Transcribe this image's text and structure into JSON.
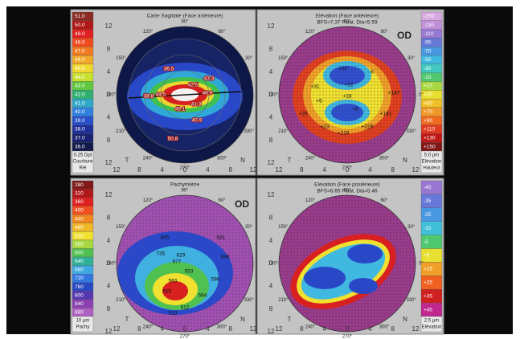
{
  "panels": [
    {
      "title": "Carte Sagittale (Face antérieure)",
      "scale": {
        "labels": [
          "51.0",
          "50.0",
          "49.0",
          "48.0",
          "47.0",
          "46.0",
          "45.0",
          "44.0",
          "43.0",
          "42.0",
          "41.0",
          "40.0",
          "39.0",
          "38.0",
          "37.0",
          "36.0"
        ],
        "colors": [
          "#8a2a20",
          "#b01818",
          "#e02020",
          "#f04a20",
          "#f07a20",
          "#f0a828",
          "#f0d830",
          "#c8e030",
          "#60c840",
          "#30b070",
          "#30a8c8",
          "#3080e0",
          "#2850c8",
          "#20309a",
          "#182270",
          "#101a48"
        ],
        "footer": [
          "0.25 Dpt",
          "Courbure",
          "Rel"
        ]
      },
      "yticks": [
        "12",
        "8",
        "4",
        "0",
        "4",
        "8",
        "12"
      ],
      "xticks": [
        "12",
        "8",
        "4",
        "0",
        "4",
        "8",
        "12"
      ],
      "sides": [
        "T",
        "N"
      ],
      "angles": [
        "90°",
        "120°",
        "150°",
        "180°",
        "210°",
        "240°",
        "270°",
        "300°",
        "330°",
        "0°",
        "30°",
        "60°"
      ],
      "map_labels": [
        "36.5",
        "43.3",
        "44.5",
        "42.5",
        "38.8",
        "48.9",
        "41.3",
        "49.1",
        "40.9",
        "50.8"
      ]
    },
    {
      "title": "Elévation (Face antérieure)",
      "subtitle": "BFS=7.37 Float, Dia=5.59",
      "od": "OD",
      "scale": {
        "labels": [
          "-150",
          "-130",
          "-110",
          "-90",
          "-70",
          "-50",
          "-30",
          "-10",
          "+10",
          "+30",
          "+50",
          "+70",
          "+90",
          "+110",
          "+130",
          "+150"
        ],
        "colors": [
          "#d8a8e0",
          "#c090d8",
          "#9878d0",
          "#6878d8",
          "#4898e0",
          "#40b8e0",
          "#40c8c0",
          "#50c870",
          "#a8d840",
          "#e8e030",
          "#f0c028",
          "#f09828",
          "#f06a20",
          "#e03a20",
          "#c01818",
          "#801818"
        ],
        "footer": [
          "5.0 µm",
          "Elévation",
          "Hauteur"
        ]
      },
      "yticks": [
        "12",
        "8",
        "4",
        "0",
        "4",
        "8",
        "12"
      ],
      "xticks": [
        "12",
        "8",
        "4",
        "0",
        "4",
        "8",
        "12"
      ],
      "sides": [
        "T",
        "N"
      ],
      "angles": [
        "90°",
        "120°",
        "150°",
        "180°",
        "210°",
        "240°",
        "270°",
        "300°",
        "330°",
        "0°",
        "30°",
        "60°"
      ],
      "map_labels": [
        "+37",
        "+12",
        "-6",
        "+18",
        "+147",
        "+31",
        "+5",
        "+29",
        "+161",
        "+23",
        "+219",
        "+228",
        "+8"
      ]
    },
    {
      "title": "Pachymétrie",
      "od": "OD",
      "scale": {
        "labels": [
          "280",
          "320",
          "360",
          "400",
          "440",
          "480",
          "520",
          "560",
          "600",
          "640",
          "680",
          "720",
          "760",
          "800",
          "840",
          "880"
        ],
        "colors": [
          "#801818",
          "#b01818",
          "#e02020",
          "#f05020",
          "#f08820",
          "#f0b828",
          "#f0e030",
          "#a8d840",
          "#50c050",
          "#30b098",
          "#40a8e0",
          "#3078e0",
          "#2848c0",
          "#5838b0",
          "#8a40b0",
          "#b060c0"
        ],
        "footer": [
          "10 µm",
          "Pachy"
        ]
      },
      "yticks": [
        "12",
        "8",
        "4",
        "0",
        "4",
        "8",
        "12"
      ],
      "xticks": [
        "12",
        "8",
        "4",
        "0",
        "4",
        "8",
        "12"
      ],
      "sides": [
        "T",
        "N"
      ],
      "angles": [
        "90°",
        "120°",
        "150°",
        "180°",
        "210°",
        "240°",
        "270°",
        "300°",
        "330°",
        "0°",
        "30°",
        "60°"
      ],
      "map_labels": [
        "805",
        "735",
        "629",
        "677",
        "560",
        "553",
        "525",
        "594",
        "512",
        "513",
        "596",
        "698",
        "931"
      ]
    },
    {
      "title": "Elévation (Face postérieure)",
      "subtitle": "BFS=6.65 Float, Dia=5.46",
      "scale": {
        "labels": [
          "-45",
          "-35",
          "-25",
          "-15",
          "-5",
          "+5",
          "+15",
          "+25",
          "+35",
          "+45"
        ],
        "colors": [
          "#9878d0",
          "#6878d8",
          "#4898e0",
          "#40c0d8",
          "#50c870",
          "#e8e030",
          "#f0a028",
          "#f06020",
          "#d02020",
          "#c02890"
        ],
        "footer": [
          "2.5 µm",
          "Elévation"
        ]
      },
      "yticks": [
        "12",
        "8",
        "4",
        "0",
        "4",
        "8",
        "12"
      ],
      "xticks": [
        "12",
        "8",
        "4",
        "0",
        "4",
        "8",
        "12"
      ],
      "sides": [
        "T",
        "N"
      ],
      "angles": [
        "90°",
        "120°",
        "150°",
        "180°",
        "210°",
        "240°",
        "270°",
        "300°",
        "330°",
        "0°",
        "30°",
        "60°"
      ]
    }
  ]
}
